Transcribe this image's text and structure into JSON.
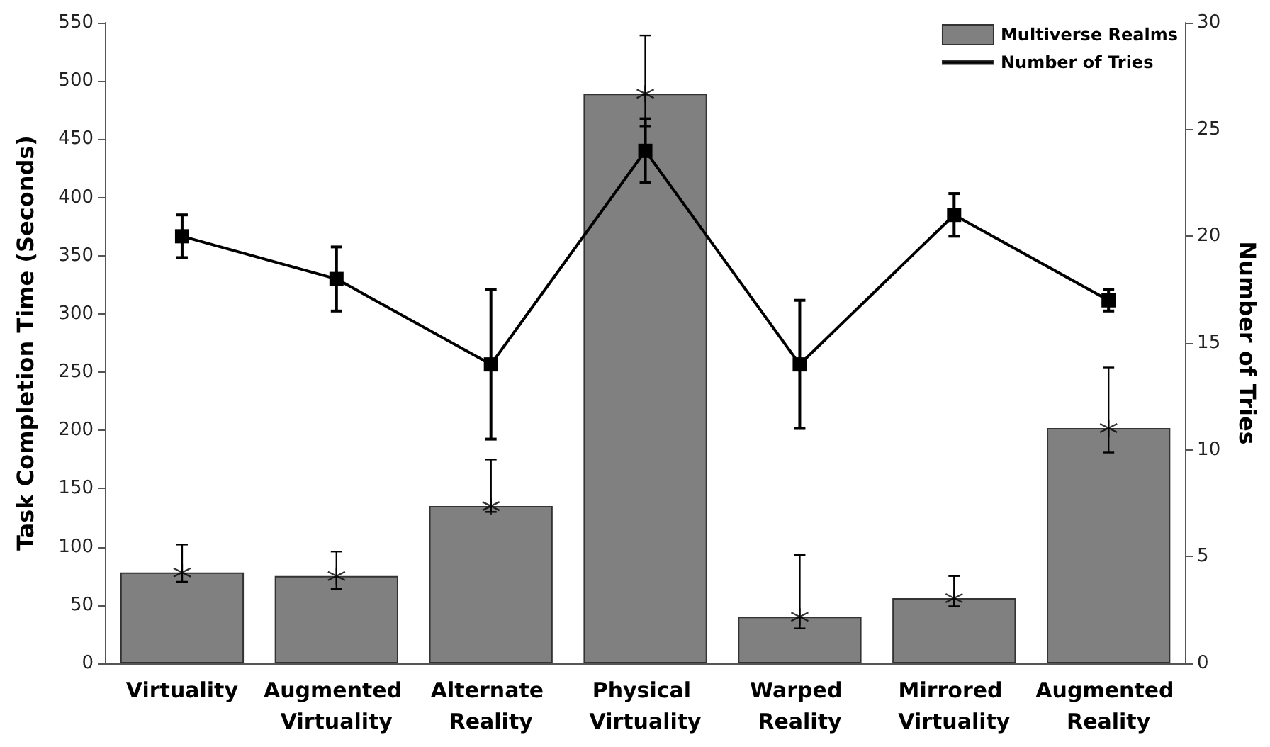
{
  "chart_data": {
    "type": "bar",
    "categories": [
      "Virtuality",
      "Augmented Virtuality",
      "Alternate Reality",
      "Physical Virtuality",
      "Warped Reality",
      "Mirrored Virtuality",
      "Augmented Reality"
    ],
    "series": [
      {
        "name": "Multiverse Realms",
        "color": "#808080",
        "values": [
          78,
          75,
          135,
          489,
          40,
          56,
          202
        ],
        "errors": [
          [
            70,
            102
          ],
          [
            64,
            96
          ],
          [
            130,
            175
          ],
          [
            461,
            539
          ],
          [
            30,
            93
          ],
          [
            49,
            75
          ],
          [
            181,
            254
          ]
        ]
      },
      {
        "type": "scatter",
        "color": "#000000",
        "marker": "cross",
        "x": [
          "Virtuality",
          "Augmented Virtuality",
          "Alternate Reality",
          "Physical Virtuality",
          "Warped Reality",
          "Mirrored Virtuality",
          "Augmented Reality"
        ],
        "values": [
          78,
          75,
          135,
          489,
          40,
          56,
          202
        ]
      },
      {
        "name": "Number of Tries",
        "type": "line",
        "axis": "y2",
        "color": "#000000",
        "marker": "square",
        "line_style": "solid",
        "values": [
          20,
          18,
          14,
          24,
          14,
          21,
          17
        ],
        "errors": [
          [
            19,
            21
          ],
          [
            16.5,
            19.5
          ],
          [
            10.5,
            17.5
          ],
          [
            22.5,
            25.5
          ],
          [
            11,
            17
          ],
          [
            20,
            22
          ],
          [
            16.5,
            17.5
          ]
        ]
      }
    ],
    "ylabel": "Task Completion Time (Seconds)",
    "y2label": "Number of Tries",
    "ylim": [
      0,
      550
    ],
    "yticks": [
      0,
      50,
      100,
      150,
      200,
      250,
      300,
      350,
      400,
      450,
      500,
      550
    ],
    "y2lim": [
      0,
      30
    ],
    "y2ticks": [
      0,
      5,
      10,
      15,
      20,
      25,
      30
    ],
    "grid": false,
    "legend": "top right"
  }
}
